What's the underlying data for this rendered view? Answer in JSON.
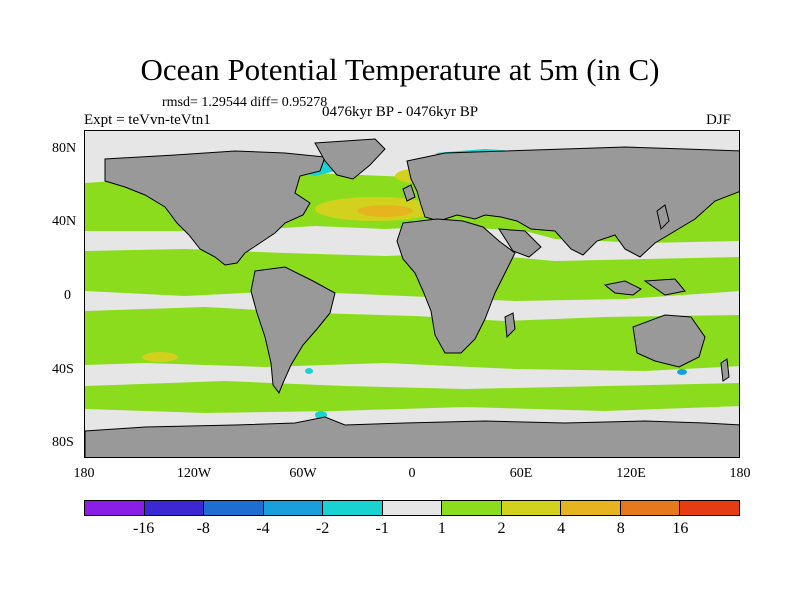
{
  "title": "Ocean Potential Temperature at 5m (in C)",
  "stats": "rmsd= 1.29544 diff= 0.95278",
  "expt": "Expt = teVvn-teVtn1",
  "period": "0476kyr BP - 0476kyr BP",
  "season": "DJF",
  "axes": {
    "lat_ticks": [
      "80N",
      "40N",
      "0",
      "40S",
      "80S"
    ],
    "lon_ticks": [
      "180",
      "120W",
      "60W",
      "0",
      "60E",
      "120E",
      "180"
    ]
  },
  "colorbar": {
    "colors": [
      "#8a1ee6",
      "#3c28d2",
      "#1e6ed2",
      "#19a0dc",
      "#19d2d2",
      "#e6e6e6",
      "#8cdc1e",
      "#d2d21e",
      "#e6b41e",
      "#e6781e",
      "#e63c14"
    ],
    "labels": [
      "-16",
      "-8",
      "-4",
      "-2",
      "-1",
      "1",
      "2",
      "4",
      "8",
      "16"
    ]
  },
  "colors": {
    "land": "#999999",
    "neutral_ocean": "#e6e6e6",
    "positive_anomaly": "#8cdc1e"
  }
}
